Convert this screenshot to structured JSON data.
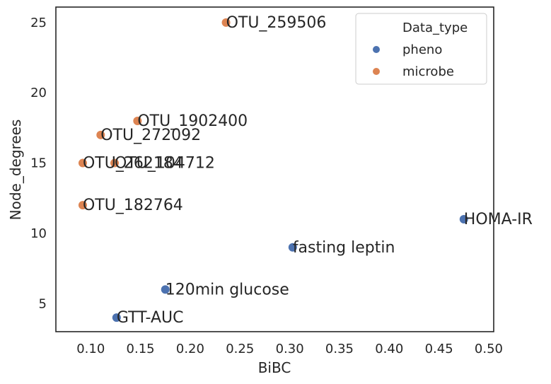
{
  "chart_data": {
    "type": "scatter",
    "xlabel": "BiBC",
    "ylabel": "Node_degrees",
    "xlim": [
      0.065,
      0.505
    ],
    "ylim": [
      3,
      26.1
    ],
    "x_ticks": [
      0.1,
      0.15,
      0.2,
      0.25,
      0.3,
      0.35,
      0.4,
      0.45,
      0.5
    ],
    "x_tick_labels": [
      "0.10",
      "0.15",
      "0.20",
      "0.25",
      "0.30",
      "0.35",
      "0.40",
      "0.45",
      "0.50"
    ],
    "y_ticks": [
      5,
      10,
      15,
      20,
      25
    ],
    "y_tick_labels": [
      "5",
      "10",
      "15",
      "20",
      "25"
    ],
    "grid": false,
    "legend": {
      "title": "Data_type",
      "position": "top-right",
      "entries": [
        {
          "name": "pheno",
          "color": "#4c72b0"
        },
        {
          "name": "microbe",
          "color": "#dd8452"
        }
      ]
    },
    "series": [
      {
        "name": "pheno",
        "color": "#4c72b0",
        "points": [
          {
            "x": 0.475,
            "y": 11,
            "label": "HOMA-IR"
          },
          {
            "x": 0.303,
            "y": 9,
            "label": "fasting leptin"
          },
          {
            "x": 0.175,
            "y": 6,
            "label": "120min glucose"
          },
          {
            "x": 0.126,
            "y": 4,
            "label": "GTT-AUC"
          }
        ]
      },
      {
        "name": "microbe",
        "color": "#dd8452",
        "points": [
          {
            "x": 0.236,
            "y": 25,
            "label": "OTU_259506"
          },
          {
            "x": 0.147,
            "y": 18,
            "label": "OTU_1902400"
          },
          {
            "x": 0.11,
            "y": 17,
            "label": "OTU_272092"
          },
          {
            "x": 0.092,
            "y": 15,
            "label": "OTU_262184"
          },
          {
            "x": 0.124,
            "y": 15,
            "label": "OTU_104712"
          },
          {
            "x": 0.092,
            "y": 12,
            "label": "OTU_182764"
          }
        ]
      }
    ]
  }
}
